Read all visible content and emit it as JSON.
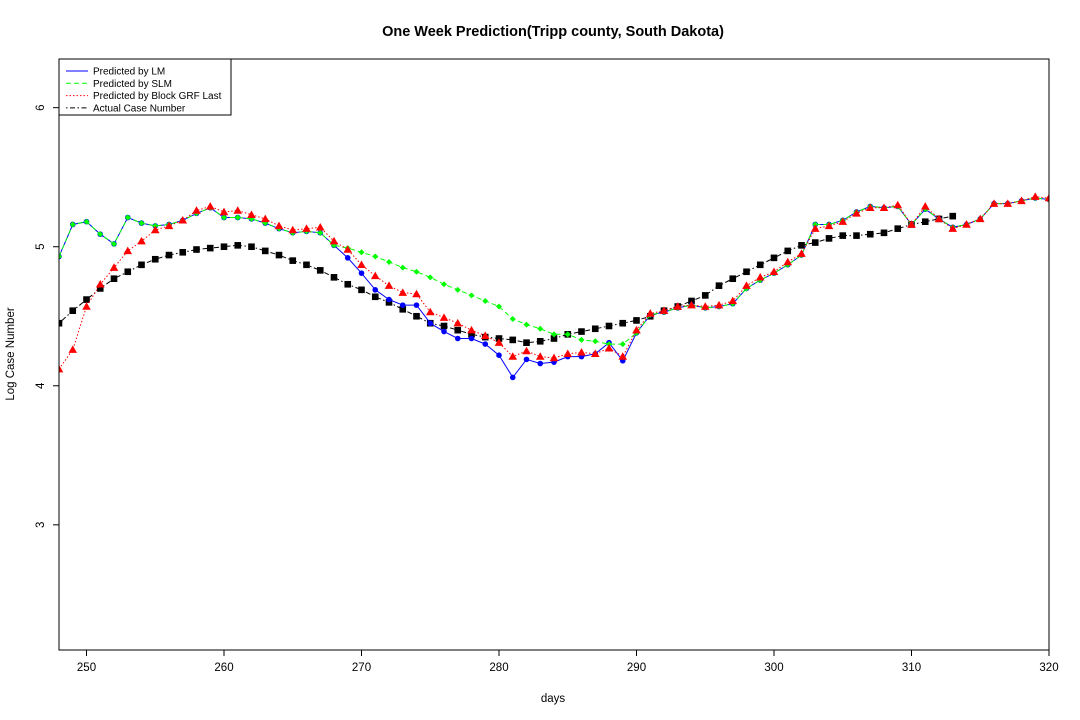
{
  "chart_data": {
    "type": "line",
    "title": "One Week Prediction(Tripp county, South Dakota)",
    "xlabel": "days",
    "ylabel": "Log Case Number",
    "xlim": [
      248,
      320
    ],
    "ylim": [
      2.1,
      6.35
    ],
    "xticks": [
      250,
      260,
      270,
      280,
      290,
      300,
      310,
      320
    ],
    "yticks": [
      3,
      4,
      5,
      6
    ],
    "grid": false,
    "legend_position": "top-left",
    "x": [
      248,
      249,
      250,
      251,
      252,
      253,
      254,
      255,
      256,
      257,
      258,
      259,
      260,
      261,
      262,
      263,
      264,
      265,
      266,
      267,
      268,
      269,
      270,
      271,
      272,
      273,
      274,
      275,
      276,
      277,
      278,
      279,
      280,
      281,
      282,
      283,
      284,
      285,
      286,
      287,
      288,
      289,
      290,
      291,
      292,
      293,
      294,
      295,
      296,
      297,
      298,
      299,
      300,
      301,
      302,
      303,
      304,
      305,
      306,
      307,
      308,
      309,
      310,
      311,
      312,
      313,
      314,
      315,
      316,
      317,
      318,
      319,
      320
    ],
    "series": [
      {
        "name": "Predicted by LM",
        "color": "#0000ff",
        "linestyle": "solid",
        "marker": "circle",
        "values": [
          4.93,
          5.16,
          5.18,
          5.09,
          5.02,
          5.21,
          5.17,
          5.15,
          5.16,
          5.19,
          5.24,
          5.28,
          5.21,
          5.21,
          5.2,
          5.17,
          5.13,
          5.1,
          5.11,
          5.1,
          5.01,
          4.92,
          4.81,
          4.69,
          4.62,
          4.58,
          4.58,
          4.45,
          4.39,
          4.34,
          4.34,
          4.3,
          4.22,
          4.06,
          4.19,
          4.16,
          4.17,
          4.21,
          4.21,
          4.23,
          4.31,
          4.18,
          4.38,
          4.51,
          4.53,
          4.56,
          4.58,
          4.56,
          4.57,
          4.59,
          4.7,
          4.76,
          4.81,
          4.87,
          4.94,
          5.16,
          5.16,
          5.19,
          5.25,
          5.29,
          5.28,
          5.29,
          5.16,
          5.27,
          5.2,
          5.14,
          5.16,
          5.2,
          5.31,
          5.31,
          5.33,
          5.35,
          5.34
        ]
      },
      {
        "name": "Predicted by SLM",
        "color": "#00ff00",
        "linestyle": "dashed",
        "marker": "diamond",
        "values": [
          4.93,
          5.16,
          5.18,
          5.09,
          5.02,
          5.21,
          5.17,
          5.15,
          5.16,
          5.19,
          5.24,
          5.28,
          5.21,
          5.21,
          5.2,
          5.17,
          5.13,
          5.1,
          5.11,
          5.1,
          5.01,
          4.99,
          4.96,
          4.93,
          4.89,
          4.85,
          4.82,
          4.78,
          4.73,
          4.69,
          4.65,
          4.61,
          4.57,
          4.48,
          4.44,
          4.41,
          4.37,
          4.37,
          4.33,
          4.32,
          4.3,
          4.3,
          4.38,
          4.51,
          4.53,
          4.56,
          4.58,
          4.56,
          4.57,
          4.59,
          4.7,
          4.76,
          4.81,
          4.87,
          4.94,
          5.16,
          5.16,
          5.19,
          5.25,
          5.29,
          5.28,
          5.29,
          5.16,
          5.27,
          5.2,
          5.14,
          5.16,
          5.2,
          5.31,
          5.31,
          5.33,
          5.35,
          5.34
        ]
      },
      {
        "name": "Predicted by Block GRF Last",
        "color": "#ff0000",
        "linestyle": "dotted",
        "marker": "triangle",
        "values": [
          4.12,
          4.26,
          4.57,
          4.73,
          4.85,
          4.97,
          5.04,
          5.12,
          5.15,
          5.19,
          5.26,
          5.29,
          5.25,
          5.26,
          5.23,
          5.2,
          5.15,
          5.12,
          5.13,
          5.14,
          5.04,
          4.98,
          4.87,
          4.79,
          4.72,
          4.67,
          4.66,
          4.53,
          4.49,
          4.45,
          4.4,
          4.36,
          4.31,
          4.21,
          4.25,
          4.21,
          4.2,
          4.23,
          4.24,
          4.23,
          4.27,
          4.21,
          4.4,
          4.52,
          4.54,
          4.57,
          4.58,
          4.57,
          4.58,
          4.61,
          4.72,
          4.78,
          4.82,
          4.89,
          4.95,
          5.13,
          5.15,
          5.18,
          5.24,
          5.28,
          5.28,
          5.3,
          5.16,
          5.29,
          5.2,
          5.13,
          5.16,
          5.2,
          5.31,
          5.31,
          5.33,
          5.36,
          5.35
        ]
      },
      {
        "name": "Actual Case Number",
        "color": "#000000",
        "linestyle": "dotdash",
        "marker": "square",
        "values": [
          4.45,
          4.54,
          4.62,
          4.7,
          4.77,
          4.82,
          4.87,
          4.91,
          4.94,
          4.96,
          4.98,
          4.99,
          5.0,
          5.01,
          5.0,
          4.97,
          4.94,
          4.9,
          4.87,
          4.83,
          4.78,
          4.73,
          4.69,
          4.64,
          4.6,
          4.55,
          4.5,
          4.45,
          4.43,
          4.4,
          4.37,
          4.35,
          4.34,
          4.33,
          4.31,
          4.32,
          4.34,
          4.37,
          4.39,
          4.41,
          4.43,
          4.45,
          4.47,
          4.5,
          4.54,
          4.57,
          4.61,
          4.65,
          4.72,
          4.77,
          4.82,
          4.87,
          4.92,
          4.97,
          5.01,
          5.03,
          5.06,
          5.08,
          5.08,
          5.09,
          5.1,
          5.13,
          5.16,
          5.18,
          5.2,
          5.22,
          null,
          null,
          null,
          null,
          null,
          null,
          null
        ]
      }
    ]
  }
}
